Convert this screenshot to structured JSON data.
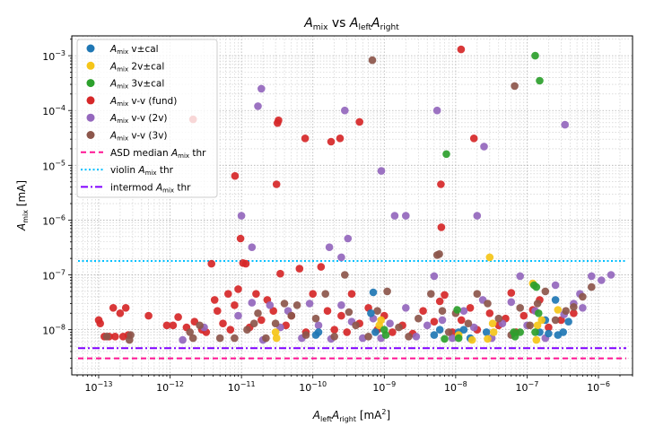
{
  "chart_data": {
    "type": "scatter",
    "title": {
      "a": "A",
      "a_sub": "mix",
      "mid": " vs ",
      "b": "A",
      "b_sub": "left",
      "c": "A",
      "c_sub": "right"
    },
    "xlabel": {
      "a": "A",
      "a_sub": "left",
      "b": "A",
      "b_sub": "right",
      "unit": "  [mA",
      "unit_sup": "2",
      "unit_end": "]"
    },
    "ylabel": {
      "a": "A",
      "a_sub": "mix",
      "unit": "  [mA]"
    },
    "x_scale": "log",
    "y_scale": "log",
    "xlim": [
      4.2e-14,
      3e-06
    ],
    "ylim": [
      1.5e-09,
      0.0023
    ],
    "x_ticks": [
      {
        "value": 1e-13,
        "base": "10",
        "exp": "−13"
      },
      {
        "value": 1e-12,
        "base": "10",
        "exp": "−12"
      },
      {
        "value": 1e-11,
        "base": "10",
        "exp": "−11"
      },
      {
        "value": 1e-10,
        "base": "10",
        "exp": "−10"
      },
      {
        "value": 1e-09,
        "base": "10",
        "exp": "−9"
      },
      {
        "value": 1e-08,
        "base": "10",
        "exp": "−8"
      },
      {
        "value": 1e-07,
        "base": "10",
        "exp": "−7"
      },
      {
        "value": 1e-06,
        "base": "10",
        "exp": "−6"
      }
    ],
    "y_ticks": [
      {
        "value": 1e-08,
        "base": "10",
        "exp": "−8"
      },
      {
        "value": 1e-07,
        "base": "10",
        "exp": "−7"
      },
      {
        "value": 1e-06,
        "base": "10",
        "exp": "−6"
      },
      {
        "value": 1e-05,
        "base": "10",
        "exp": "−5"
      },
      {
        "value": 0.0001,
        "base": "10",
        "exp": "−4"
      },
      {
        "value": 0.001,
        "base": "10",
        "exp": "−3"
      }
    ],
    "grid": "major and minor, dotted",
    "legend_placement": "upper-left",
    "series": [
      {
        "name": "v-v (fund)",
        "label_prefix": "A",
        "label_sub": "mix",
        "color": "#d62728",
        "marker": "circle",
        "points": [
          [
            1.19e-08,
            0.0013
          ],
          [
            3.3e-11,
            6.6e-05
          ],
          [
            3.2e-11,
            5.9e-05
          ],
          [
            7.8e-11,
            3.1e-05
          ],
          [
            1.8e-10,
            2.7e-05
          ],
          [
            2.4e-10,
            3.1e-05
          ],
          [
            4.5e-10,
            6.2e-05
          ],
          [
            1.8e-08,
            3.1e-05
          ],
          [
            8.1e-12,
            6.4e-06
          ],
          [
            3.1e-11,
            4.5e-06
          ],
          [
            6.2e-09,
            4.5e-06
          ],
          [
            6.3e-09,
            7.4e-07
          ],
          [
            9.7e-12,
            4.6e-07
          ],
          [
            2.1e-12,
            6.9e-05
          ],
          [
            1e-13,
            1.5e-08
          ],
          [
            1.05e-13,
            1.3e-08
          ],
          [
            1.2e-13,
            7.5e-09
          ],
          [
            1.4e-13,
            7.5e-09
          ],
          [
            1.7e-13,
            7.5e-09
          ],
          [
            1.6e-13,
            2.5e-08
          ],
          [
            2e-13,
            2e-08
          ],
          [
            2.4e-13,
            2.5e-08
          ],
          [
            2.2e-13,
            7.5e-09
          ],
          [
            2.6e-13,
            8e-09
          ],
          [
            5e-13,
            1.8e-08
          ],
          [
            9e-13,
            1.2e-08
          ],
          [
            1.1e-12,
            1.2e-08
          ],
          [
            1.3e-12,
            1.7e-08
          ],
          [
            1.7e-12,
            1.1e-08
          ],
          [
            2.2e-12,
            1.4e-08
          ],
          [
            2.8e-12,
            1e-08
          ],
          [
            3.2e-12,
            9e-09
          ],
          [
            3.8e-12,
            1.6e-07
          ],
          [
            4.2e-12,
            3.5e-08
          ],
          [
            4.6e-12,
            2.2e-08
          ],
          [
            5.5e-12,
            1.3e-08
          ],
          [
            6.5e-12,
            4.5e-08
          ],
          [
            7e-12,
            1e-08
          ],
          [
            8e-12,
            2.8e-08
          ],
          [
            9e-12,
            5.5e-08
          ],
          [
            1.05e-11,
            1.65e-07
          ],
          [
            1.15e-11,
            1.6e-07
          ],
          [
            1.3e-11,
            1.1e-08
          ],
          [
            1.6e-11,
            4.5e-08
          ],
          [
            1.9e-11,
            1.5e-08
          ],
          [
            2.3e-11,
            3.5e-08
          ],
          [
            2.8e-11,
            2.2e-08
          ],
          [
            3.5e-11,
            1.05e-07
          ],
          [
            4.2e-11,
            1.2e-08
          ],
          [
            5e-11,
            1.8e-08
          ],
          [
            6.5e-11,
            1.3e-07
          ],
          [
            8e-11,
            9e-09
          ],
          [
            1e-10,
            4.5e-08
          ],
          [
            1.3e-10,
            1.4e-07
          ],
          [
            1.6e-10,
            2.2e-08
          ],
          [
            2e-10,
            1e-08
          ],
          [
            2.5e-10,
            1.8e-08
          ],
          [
            3e-10,
            9e-09
          ],
          [
            3.5e-10,
            4.5e-08
          ],
          [
            4.5e-10,
            1.3e-08
          ],
          [
            6e-10,
            2.5e-08
          ],
          [
            8e-10,
            1e-08
          ],
          [
            1e-09,
            1.8e-08
          ],
          [
            1.3e-09,
            9e-09
          ],
          [
            1.8e-09,
            1.2e-08
          ],
          [
            2.5e-09,
            8.5e-09
          ],
          [
            3.5e-09,
            2.2e-08
          ],
          [
            5e-09,
            1.4e-08
          ],
          [
            6e-09,
            3.3e-08
          ],
          [
            7e-09,
            4.3e-08
          ],
          [
            9e-09,
            9e-09
          ],
          [
            1.2e-08,
            1.5e-08
          ],
          [
            1.6e-08,
            2.5e-08
          ],
          [
            2e-08,
            1e-08
          ],
          [
            3e-08,
            2e-08
          ],
          [
            4e-08,
            1.2e-08
          ],
          [
            5e-08,
            1.6e-08
          ],
          [
            6e-08,
            4.7e-08
          ],
          [
            7e-08,
            9e-09
          ],
          [
            9e-08,
            1.8e-08
          ],
          [
            1.2e-07,
            2.3e-08
          ],
          [
            1.5e-07,
            3.5e-08
          ],
          [
            2e-07,
            1.1e-08
          ],
          [
            3e-07,
            1.5e-08
          ],
          [
            4.5e-07,
            2e-08
          ]
        ]
      },
      {
        "name": "v-v (2v)",
        "label_prefix": "A",
        "label_sub": "mix",
        "color": "#9467bd",
        "marker": "circle",
        "points": [
          [
            1.9e-11,
            0.00025
          ],
          [
            1.7e-11,
            0.00012
          ],
          [
            2.8e-10,
            0.0001
          ],
          [
            5.5e-09,
            0.0001
          ],
          [
            3.4e-07,
            5.5e-05
          ],
          [
            2.5e-08,
            2.2e-05
          ],
          [
            9.1e-10,
            7.9e-06
          ],
          [
            1e-11,
            1.2e-06
          ],
          [
            1.4e-09,
            1.2e-06
          ],
          [
            2e-09,
            1.2e-06
          ],
          [
            2e-08,
            1.2e-06
          ],
          [
            3.1e-10,
            4.6e-07
          ],
          [
            1.4e-11,
            3.2e-07
          ],
          [
            1.7e-10,
            3.2e-07
          ],
          [
            2.5e-10,
            2.1e-07
          ],
          [
            1.5e-12,
            6.5e-09
          ],
          [
            3e-12,
            1.1e-08
          ],
          [
            9e-12,
            1.8e-08
          ],
          [
            1.4e-11,
            3.1e-08
          ],
          [
            2e-11,
            6.5e-09
          ],
          [
            2.5e-11,
            2.8e-08
          ],
          [
            3.5e-11,
            1.1e-08
          ],
          [
            4.5e-11,
            2.2e-08
          ],
          [
            7e-11,
            7e-09
          ],
          [
            9e-11,
            3e-08
          ],
          [
            1.2e-10,
            1.2e-08
          ],
          [
            1.8e-10,
            6.8e-09
          ],
          [
            2.5e-10,
            2.8e-08
          ],
          [
            3.5e-10,
            1.4e-08
          ],
          [
            5e-10,
            7e-09
          ],
          [
            7e-10,
            1.6e-08
          ],
          [
            9e-10,
            7e-09
          ],
          [
            1.2e-09,
            1.3e-08
          ],
          [
            2e-09,
            2.5e-08
          ],
          [
            2.8e-09,
            7.5e-09
          ],
          [
            4e-09,
            1.2e-08
          ],
          [
            5e-09,
            9.5e-08
          ],
          [
            6.5e-09,
            1.5e-08
          ],
          [
            9e-09,
            7e-09
          ],
          [
            1.3e-08,
            2.2e-08
          ],
          [
            1.8e-08,
            1.1e-08
          ],
          [
            2.4e-08,
            3.5e-08
          ],
          [
            3.2e-08,
            7e-09
          ],
          [
            4.5e-08,
            1.3e-08
          ],
          [
            6e-08,
            3.2e-08
          ],
          [
            8e-08,
            9.5e-08
          ],
          [
            1e-07,
            1.2e-08
          ],
          [
            1.3e-07,
            2.2e-08
          ],
          [
            1.8e-07,
            7e-09
          ],
          [
            2.5e-07,
            6.5e-08
          ],
          [
            3.3e-07,
            1.9e-08
          ],
          [
            4.5e-07,
            3e-08
          ],
          [
            5.5e-07,
            4.5e-08
          ],
          [
            8e-07,
            9.5e-08
          ],
          [
            1.1e-06,
            8e-08
          ],
          [
            1.5e-06,
            1e-07
          ],
          [
            6e-07,
            2.5e-08
          ]
        ]
      },
      {
        "name": "v-v (3v)",
        "label_prefix": "A",
        "label_sub": "mix",
        "color": "#8c564b",
        "marker": "circle",
        "points": [
          [
            6.8e-10,
            0.00083
          ],
          [
            6.7e-08,
            0.00028
          ],
          [
            5.9e-09,
            2.4e-07
          ],
          [
            1.3e-13,
            7.5e-09
          ],
          [
            2.7e-13,
            6.5e-09
          ],
          [
            2.8e-13,
            8e-09
          ],
          [
            1.9e-12,
            9e-09
          ],
          [
            2.1e-12,
            7e-09
          ],
          [
            2.6e-12,
            1.2e-08
          ],
          [
            5e-12,
            7e-09
          ],
          [
            8e-12,
            7e-09
          ],
          [
            1.2e-11,
            1e-08
          ],
          [
            1.5e-11,
            1.3e-08
          ],
          [
            1.7e-11,
            2e-08
          ],
          [
            2.2e-11,
            7e-09
          ],
          [
            3e-11,
            1.3e-08
          ],
          [
            4e-11,
            3e-08
          ],
          [
            5e-11,
            1.8e-08
          ],
          [
            6e-11,
            2.8e-08
          ],
          [
            8e-11,
            8e-09
          ],
          [
            1.1e-10,
            1.6e-08
          ],
          [
            1.5e-10,
            4.5e-08
          ],
          [
            2e-10,
            7.5e-09
          ],
          [
            2.8e-10,
            1e-07
          ],
          [
            3.2e-10,
            2.1e-08
          ],
          [
            4e-10,
            1.2e-08
          ],
          [
            6e-10,
            7.5e-09
          ],
          [
            8e-10,
            2.2e-08
          ],
          [
            1.1e-09,
            5e-08
          ],
          [
            1.6e-09,
            1.1e-08
          ],
          [
            2.2e-09,
            7.5e-09
          ],
          [
            3e-09,
            1.6e-08
          ],
          [
            4.5e-09,
            4.5e-08
          ],
          [
            5.5e-09,
            2.3e-07
          ],
          [
            6.5e-09,
            2.2e-08
          ],
          [
            8e-09,
            9e-09
          ],
          [
            1e-08,
            2e-08
          ],
          [
            1.5e-08,
            1.3e-08
          ],
          [
            2e-08,
            4.5e-08
          ],
          [
            2.8e-08,
            3e-08
          ],
          [
            4e-08,
            1.6e-08
          ],
          [
            6e-08,
            8e-09
          ],
          [
            8e-08,
            2.5e-08
          ],
          [
            1.1e-07,
            1.2e-08
          ],
          [
            1.4e-07,
            3e-08
          ],
          [
            1.8e-07,
            5e-08
          ],
          [
            2.5e-07,
            1.5e-08
          ],
          [
            3.5e-07,
            2.2e-08
          ],
          [
            4.5e-07,
            2.6e-08
          ],
          [
            6e-07,
            4e-08
          ],
          [
            8e-07,
            6e-08
          ]
        ]
      },
      {
        "name": "v±cal",
        "label_prefix": "A",
        "label_sub": "mix",
        "color": "#1f77b4",
        "marker": "circle",
        "points": [
          [
            7e-10,
            4.8e-08
          ],
          [
            6.5e-10,
            2e-08
          ],
          [
            1.1e-10,
            8e-09
          ],
          [
            1.2e-10,
            9e-09
          ],
          [
            7.5e-10,
            9e-09
          ],
          [
            1.1e-08,
            9e-09
          ],
          [
            1.3e-08,
            1e-08
          ],
          [
            1.6e-08,
            7e-09
          ],
          [
            2.7e-08,
            9e-09
          ],
          [
            5e-09,
            8e-09
          ],
          [
            6e-09,
            1e-08
          ],
          [
            1.5e-07,
            9e-09
          ],
          [
            2e-07,
            8.5e-09
          ],
          [
            2.5e-07,
            3.5e-08
          ],
          [
            2.7e-07,
            8e-09
          ],
          [
            3.2e-07,
            9e-09
          ],
          [
            3.8e-07,
            1.4e-08
          ],
          [
            1.8e-07,
            1.5e-08
          ]
        ]
      },
      {
        "name": "2v±cal",
        "label_prefix": "A",
        "label_sub": "mix",
        "color": "#f5c518",
        "marker": "circle",
        "points": [
          [
            3e-08,
            2.1e-07
          ],
          [
            3e-11,
            9e-09
          ],
          [
            3.1e-11,
            7e-09
          ],
          [
            9e-10,
            1.5e-08
          ],
          [
            8.5e-10,
            1.2e-08
          ],
          [
            1.1e-08,
            8e-09
          ],
          [
            1.7e-08,
            6.5e-09
          ],
          [
            2.8e-08,
            6.8e-09
          ],
          [
            3.3e-08,
            1.3e-08
          ],
          [
            3.4e-08,
            9e-09
          ],
          [
            1.2e-07,
            7e-08
          ],
          [
            1.35e-07,
            6.5e-09
          ],
          [
            1.6e-07,
            1.5e-08
          ],
          [
            2.7e-07,
            2.3e-08
          ],
          [
            1.4e-07,
            1.2e-08
          ]
        ]
      },
      {
        "name": "3v±cal",
        "label_prefix": "A",
        "label_sub": "mix",
        "color": "#2ca02c",
        "marker": "circle",
        "points": [
          [
            1.3e-07,
            0.001
          ],
          [
            1.5e-07,
            0.00035
          ],
          [
            7.4e-09,
            1.6e-05
          ],
          [
            1e-09,
            1e-08
          ],
          [
            1.05e-09,
            8e-09
          ],
          [
            7e-09,
            6.8e-09
          ],
          [
            1.05e-08,
            2.3e-08
          ],
          [
            1.1e-08,
            7e-09
          ],
          [
            6.5e-08,
            9e-09
          ],
          [
            6.8e-08,
            7.5e-09
          ],
          [
            8e-08,
            9e-09
          ],
          [
            1.25e-07,
            6.5e-08
          ],
          [
            1.35e-07,
            6e-08
          ],
          [
            1.45e-07,
            2e-08
          ],
          [
            1.3e-07,
            9e-09
          ]
        ]
      }
    ],
    "legend_order": [
      3,
      4,
      5,
      0,
      1,
      2
    ],
    "thresholds": [
      {
        "name_pre": "ASD median ",
        "name_a": "A",
        "name_sub": "mix",
        "name_post": " thr",
        "value": 3e-09,
        "color": "#ff1493",
        "style": "dashed"
      },
      {
        "name_pre": "violin ",
        "name_a": "A",
        "name_sub": "mix",
        "name_post": " thr",
        "value": 1.8e-07,
        "color": "#00bfff",
        "style": "dotted"
      },
      {
        "name_pre": "intermod ",
        "name_a": "A",
        "name_sub": "mix",
        "name_post": " thr",
        "value": 4.6e-09,
        "color": "#8000ff",
        "style": "dashdot"
      }
    ]
  }
}
